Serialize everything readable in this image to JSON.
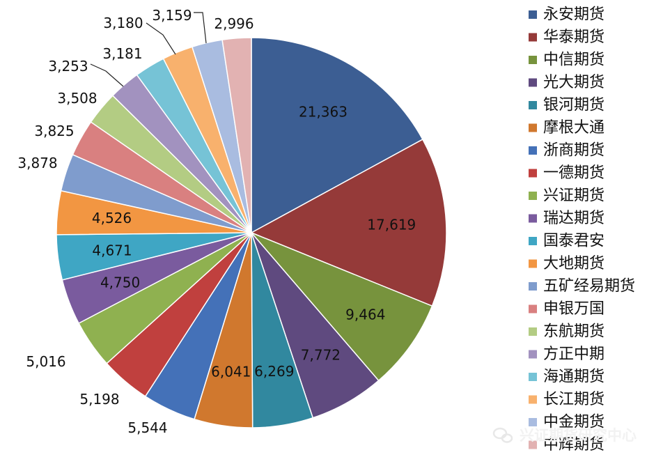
{
  "chart_data": {
    "type": "pie",
    "title": "",
    "slices": [
      {
        "label": "永安期货",
        "value": 21363,
        "display": "21,363",
        "color": "#3C5E93"
      },
      {
        "label": "华泰期货",
        "value": 17619,
        "display": "17,619",
        "color": "#953A39"
      },
      {
        "label": "中信期货",
        "value": 9464,
        "display": "9,464",
        "color": "#77933D"
      },
      {
        "label": "光大期货",
        "value": 7772,
        "display": "7,772",
        "color": "#5F4A7F"
      },
      {
        "label": "银河期货",
        "value": 6269,
        "display": "6,269",
        "color": "#31889F"
      },
      {
        "label": "摩根大通",
        "value": 6041,
        "display": "6,041",
        "color": "#D0782E"
      },
      {
        "label": "浙商期货",
        "value": 5544,
        "display": "5,544",
        "color": "#4471B8"
      },
      {
        "label": "一德期货",
        "value": 5198,
        "display": "5,198",
        "color": "#C0403E"
      },
      {
        "label": "兴证期货",
        "value": 5016,
        "display": "5,016",
        "color": "#8FB150"
      },
      {
        "label": "瑞达期货",
        "value": 4750,
        "display": "4,750",
        "color": "#7A5B9E"
      },
      {
        "label": "国泰君安",
        "value": 4671,
        "display": "4,671",
        "color": "#3FA6C4"
      },
      {
        "label": "大地期货",
        "value": 4526,
        "display": "4,526",
        "color": "#F29642"
      },
      {
        "label": "五矿经易期货",
        "value": 3878,
        "display": "3,878",
        "color": "#7F9CCD"
      },
      {
        "label": "申银万国",
        "value": 3825,
        "display": "3,825",
        "color": "#D98080"
      },
      {
        "label": "东航期货",
        "value": 3508,
        "display": "3,508",
        "color": "#B3CC83"
      },
      {
        "label": "方正中期",
        "value": 3253,
        "display": "3,253",
        "color": "#A292BF"
      },
      {
        "label": "海通期货",
        "value": 3181,
        "display": "3,181",
        "color": "#76C3D6"
      },
      {
        "label": "长江期货",
        "value": 3180,
        "display": "3,180",
        "color": "#F8B16D"
      },
      {
        "label": "中金期货",
        "value": 3159,
        "display": "3,159",
        "color": "#A9BCE0"
      },
      {
        "label": "中辉期货",
        "value": 2996,
        "display": "2,996",
        "color": "#E2B2B2"
      }
    ],
    "legend_position": "right"
  },
  "watermark": {
    "text": "兴证期货研究中心"
  }
}
